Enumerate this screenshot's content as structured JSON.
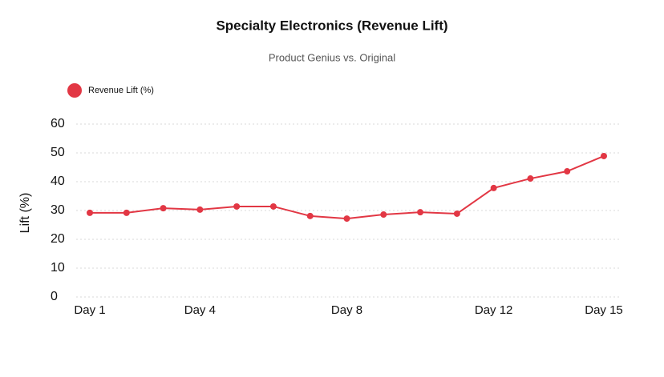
{
  "chart_data": {
    "type": "line",
    "title": "Specialty Electronics (Revenue Lift)",
    "subtitle": "Product Genius vs. Original",
    "y_label": "Lift (%)",
    "categories": [
      "Day 1",
      null,
      null,
      "Day 4",
      null,
      null,
      null,
      "Day 8",
      null,
      null,
      null,
      "Day 12",
      null,
      null,
      "Day 15"
    ],
    "series": [
      {
        "name": "Revenue Lift (%)",
        "color": "#e23744",
        "values": [
          29.2,
          29.2,
          30.8,
          30.3,
          31.4,
          31.4,
          28.1,
          27.2,
          28.6,
          29.4,
          28.9,
          37.8,
          41.1,
          43.6,
          48.9
        ]
      }
    ],
    "ylim": [
      0,
      60
    ],
    "yticks": [
      0,
      10,
      20,
      30,
      40,
      50,
      60
    ],
    "grid": true,
    "legend": "top-left"
  }
}
